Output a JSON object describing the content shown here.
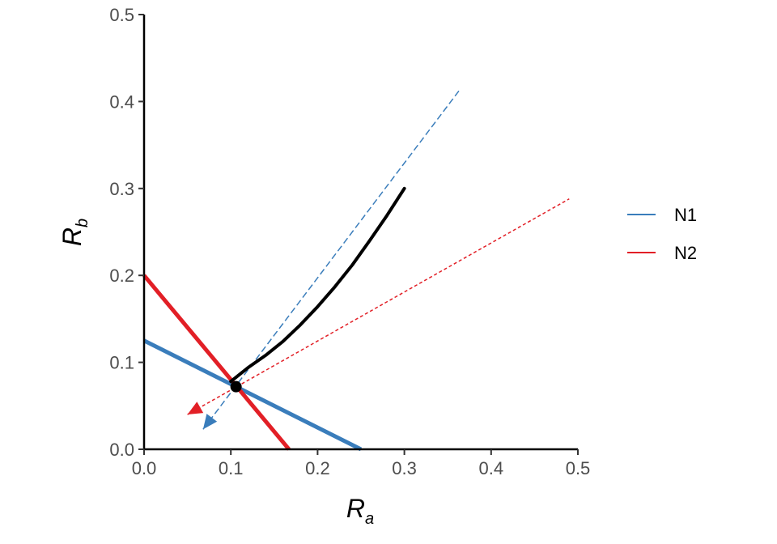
{
  "chart_data": {
    "type": "line",
    "xlabel": {
      "main": "R",
      "sub": "a"
    },
    "ylabel": {
      "main": "R",
      "sub": "b"
    },
    "xlim": [
      0,
      0.5
    ],
    "ylim": [
      0,
      0.5
    ],
    "xticks": [
      "0.0",
      "0.1",
      "0.2",
      "0.3",
      "0.4",
      "0.5"
    ],
    "yticks": [
      "0.0",
      "0.1",
      "0.2",
      "0.3",
      "0.4",
      "0.5"
    ],
    "grid": false,
    "legend_position": "right",
    "colors": {
      "N1": "#3a7dbb",
      "N2": "#e21f26",
      "trajectory": "#000000"
    },
    "series": [
      {
        "name": "N1",
        "role": "ZNGI",
        "x": [
          0,
          0.25
        ],
        "y": [
          0.125,
          0
        ]
      },
      {
        "name": "N2",
        "role": "ZNGI",
        "x": [
          0,
          0.167
        ],
        "y": [
          0.2,
          0
        ]
      },
      {
        "name": "N1",
        "role": "impact vector",
        "style": "dashed",
        "x": [
          0.068,
          0.365
        ],
        "y": [
          0.023,
          0.415
        ],
        "arrow_at": "start"
      },
      {
        "name": "N2",
        "role": "impact vector",
        "style": "dotted",
        "x": [
          0.05,
          0.49
        ],
        "y": [
          0.04,
          0.288
        ],
        "arrow_at": "start"
      },
      {
        "role": "trajectory",
        "x": [
          0.3,
          0.28,
          0.26,
          0.24,
          0.22,
          0.2,
          0.18,
          0.16,
          0.14,
          0.12,
          0.1
        ],
        "y": [
          0.3,
          0.269,
          0.24,
          0.212,
          0.187,
          0.164,
          0.143,
          0.124,
          0.108,
          0.094,
          0.078
        ]
      },
      {
        "role": "equilibrium",
        "x": [
          0.106
        ],
        "y": [
          0.072
        ]
      }
    ]
  },
  "legend": [
    {
      "label": "N1",
      "color": "#3a7dbb"
    },
    {
      "label": "N2",
      "color": "#e21f26"
    }
  ]
}
